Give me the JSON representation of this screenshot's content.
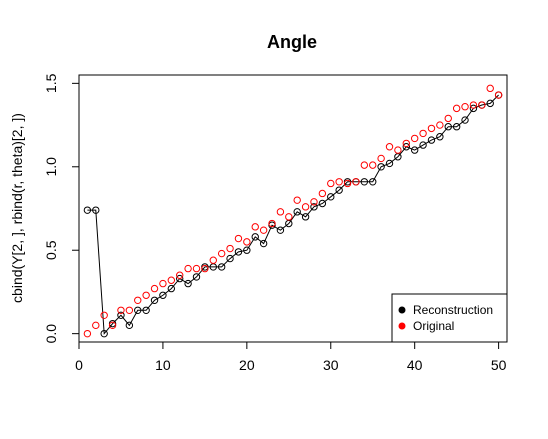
{
  "chart_data": {
    "type": "line",
    "title": "Angle",
    "xlabel": "",
    "ylabel": "cbind(Y[2, ], rbind(r, theta)[2, ])",
    "xlim": [
      0,
      51
    ],
    "ylim": [
      -0.05,
      1.55
    ],
    "x_ticks": [
      "0",
      "10",
      "20",
      "30",
      "40",
      "50"
    ],
    "y_ticks": [
      "0.0",
      "0.5",
      "1.0",
      "1.5"
    ],
    "x": [
      1,
      2,
      3,
      4,
      5,
      6,
      7,
      8,
      9,
      10,
      11,
      12,
      13,
      14,
      15,
      16,
      17,
      18,
      19,
      20,
      21,
      22,
      23,
      24,
      25,
      26,
      27,
      28,
      29,
      30,
      31,
      32,
      33,
      34,
      35,
      36,
      37,
      38,
      39,
      40,
      41,
      42,
      43,
      44,
      45,
      46,
      47,
      48,
      49,
      50
    ],
    "series": [
      {
        "name": "Reconstruction",
        "color": "#000000",
        "style": "line+points",
        "values": [
          0.74,
          0.74,
          0.0,
          0.06,
          0.11,
          0.05,
          0.14,
          0.14,
          0.2,
          0.23,
          0.27,
          0.33,
          0.3,
          0.34,
          0.4,
          0.4,
          0.4,
          0.45,
          0.49,
          0.5,
          0.58,
          0.54,
          0.65,
          0.62,
          0.66,
          0.73,
          0.7,
          0.76,
          0.78,
          0.82,
          0.86,
          0.91,
          0.91,
          0.91,
          0.91,
          1.0,
          1.02,
          1.06,
          1.12,
          1.1,
          1.13,
          1.16,
          1.18,
          1.24,
          1.24,
          1.28,
          1.35,
          1.37,
          1.38,
          1.43
        ]
      },
      {
        "name": "Original",
        "color": "#ff0000",
        "style": "points",
        "values": [
          0.0,
          0.05,
          0.11,
          0.05,
          0.14,
          0.14,
          0.2,
          0.23,
          0.27,
          0.3,
          0.32,
          0.35,
          0.39,
          0.39,
          0.39,
          0.44,
          0.48,
          0.51,
          0.57,
          0.55,
          0.64,
          0.62,
          0.66,
          0.73,
          0.7,
          0.8,
          0.76,
          0.79,
          0.84,
          0.9,
          0.91,
          0.9,
          0.91,
          1.01,
          1.01,
          1.05,
          1.12,
          1.1,
          1.14,
          1.17,
          1.2,
          1.23,
          1.25,
          1.29,
          1.35,
          1.36,
          1.37,
          1.37,
          1.47,
          1.43
        ]
      }
    ],
    "legend": {
      "position": "bottom-right",
      "entries": [
        "Reconstruction",
        "Original"
      ]
    },
    "grid": false
  }
}
